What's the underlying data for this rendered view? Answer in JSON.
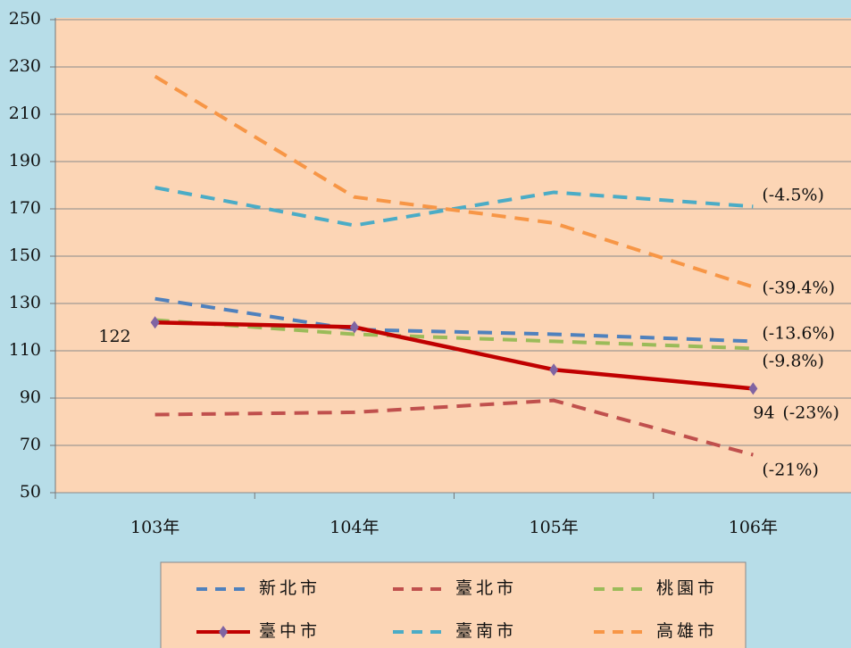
{
  "chart_data": {
    "type": "line",
    "categories": [
      "103年",
      "104年",
      "105年",
      "106年"
    ],
    "ylim": [
      50,
      250
    ],
    "yticks": [
      50,
      70,
      90,
      110,
      130,
      150,
      170,
      190,
      210,
      230,
      250
    ],
    "grid": true,
    "legend": "bottom",
    "series": [
      {
        "name": "新北市",
        "color": "#4f81bd",
        "dash": true,
        "values": [
          132,
          119,
          117,
          114
        ],
        "end_label": "(-13.6%)"
      },
      {
        "name": "臺北市",
        "color": "#c0504d",
        "dash": true,
        "values": [
          83,
          84,
          89,
          66
        ],
        "end_label": "(-21%)"
      },
      {
        "name": "桃園市",
        "color": "#9bbb59",
        "dash": true,
        "values": [
          123,
          117,
          114,
          111
        ],
        "end_label": "(-9.8%)"
      },
      {
        "name": "臺中市",
        "color": "#c00000",
        "dash": false,
        "marker_color": "#8064a2",
        "values": [
          122,
          120,
          102,
          94
        ],
        "value_labels": [
          "122",
          null,
          null,
          "94"
        ],
        "end_label": "(-23%)"
      },
      {
        "name": "臺南市",
        "color": "#4bacc6",
        "dash": true,
        "values": [
          179,
          163,
          177,
          171
        ],
        "end_label": "(-4.5%)"
      },
      {
        "name": "高雄市",
        "color": "#f79646",
        "dash": true,
        "values": [
          226,
          175,
          164,
          137
        ],
        "end_label": "(-39.4%)"
      }
    ]
  }
}
